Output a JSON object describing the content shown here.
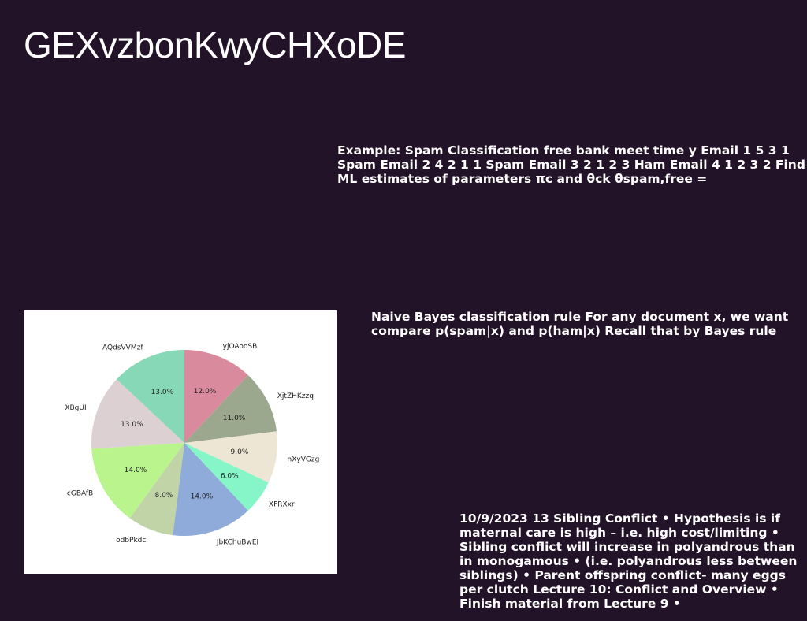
{
  "title": "GEXvzbonKwyCHXoDE",
  "text_blocks": {
    "block1": "Example: Spam Classification free bank meet time y Email 1 5 3 1 Spam Email 2 4 2 1 1 Spam Email 3 2 1 2 3 Ham Email 4 1 2 3 2 Find ML estimates of parameters πc and θck θspam,free =",
    "block2": "Naive Bayes classification rule For any document x, we want compare p(spam|x) and p(ham|x) Recall that by Bayes rule",
    "block3": "10/9/2023 13 Sibling Conflict • Hypothesis is if maternal care is high – i.e. high cost/limiting • Sibling conflict will increase in polyandrous than in monogamous • (i.e. polyandrous less between siblings) • Parent offspring conflict- many eggs per clutch Lecture 10: Conflict and Overview • Finish material from Lecture 9 •"
  },
  "chart_data": {
    "type": "pie",
    "start_angle": 90,
    "direction": "clockwise",
    "slices": [
      {
        "label": "yjOAooSB",
        "value": 12.0,
        "pct_label": "12.0%",
        "color": "#d98a9c"
      },
      {
        "label": "XjtZHKzzq",
        "value": 11.0,
        "pct_label": "11.0%",
        "color": "#9ba88e"
      },
      {
        "label": "nXyVGzg",
        "value": 9.0,
        "pct_label": "9.0%",
        "color": "#ede6d4"
      },
      {
        "label": "XFRXxr",
        "value": 6.0,
        "pct_label": "6.0%",
        "color": "#86f6c9"
      },
      {
        "label": "JbKChuBwEI",
        "value": 14.0,
        "pct_label": "14.0%",
        "color": "#8fabd9"
      },
      {
        "label": "odbPkdc",
        "value": 8.0,
        "pct_label": "8.0%",
        "color": "#c0d4a8"
      },
      {
        "label": "cGBAfB",
        "value": 14.0,
        "pct_label": "14.0%",
        "color": "#b9f48d"
      },
      {
        "label": "XBgUI",
        "value": 13.0,
        "pct_label": "13.0%",
        "color": "#ddd0d2"
      },
      {
        "label": "AQdsVVMzf",
        "value": 13.0,
        "pct_label": "13.0%",
        "color": "#86d8b6"
      }
    ]
  }
}
